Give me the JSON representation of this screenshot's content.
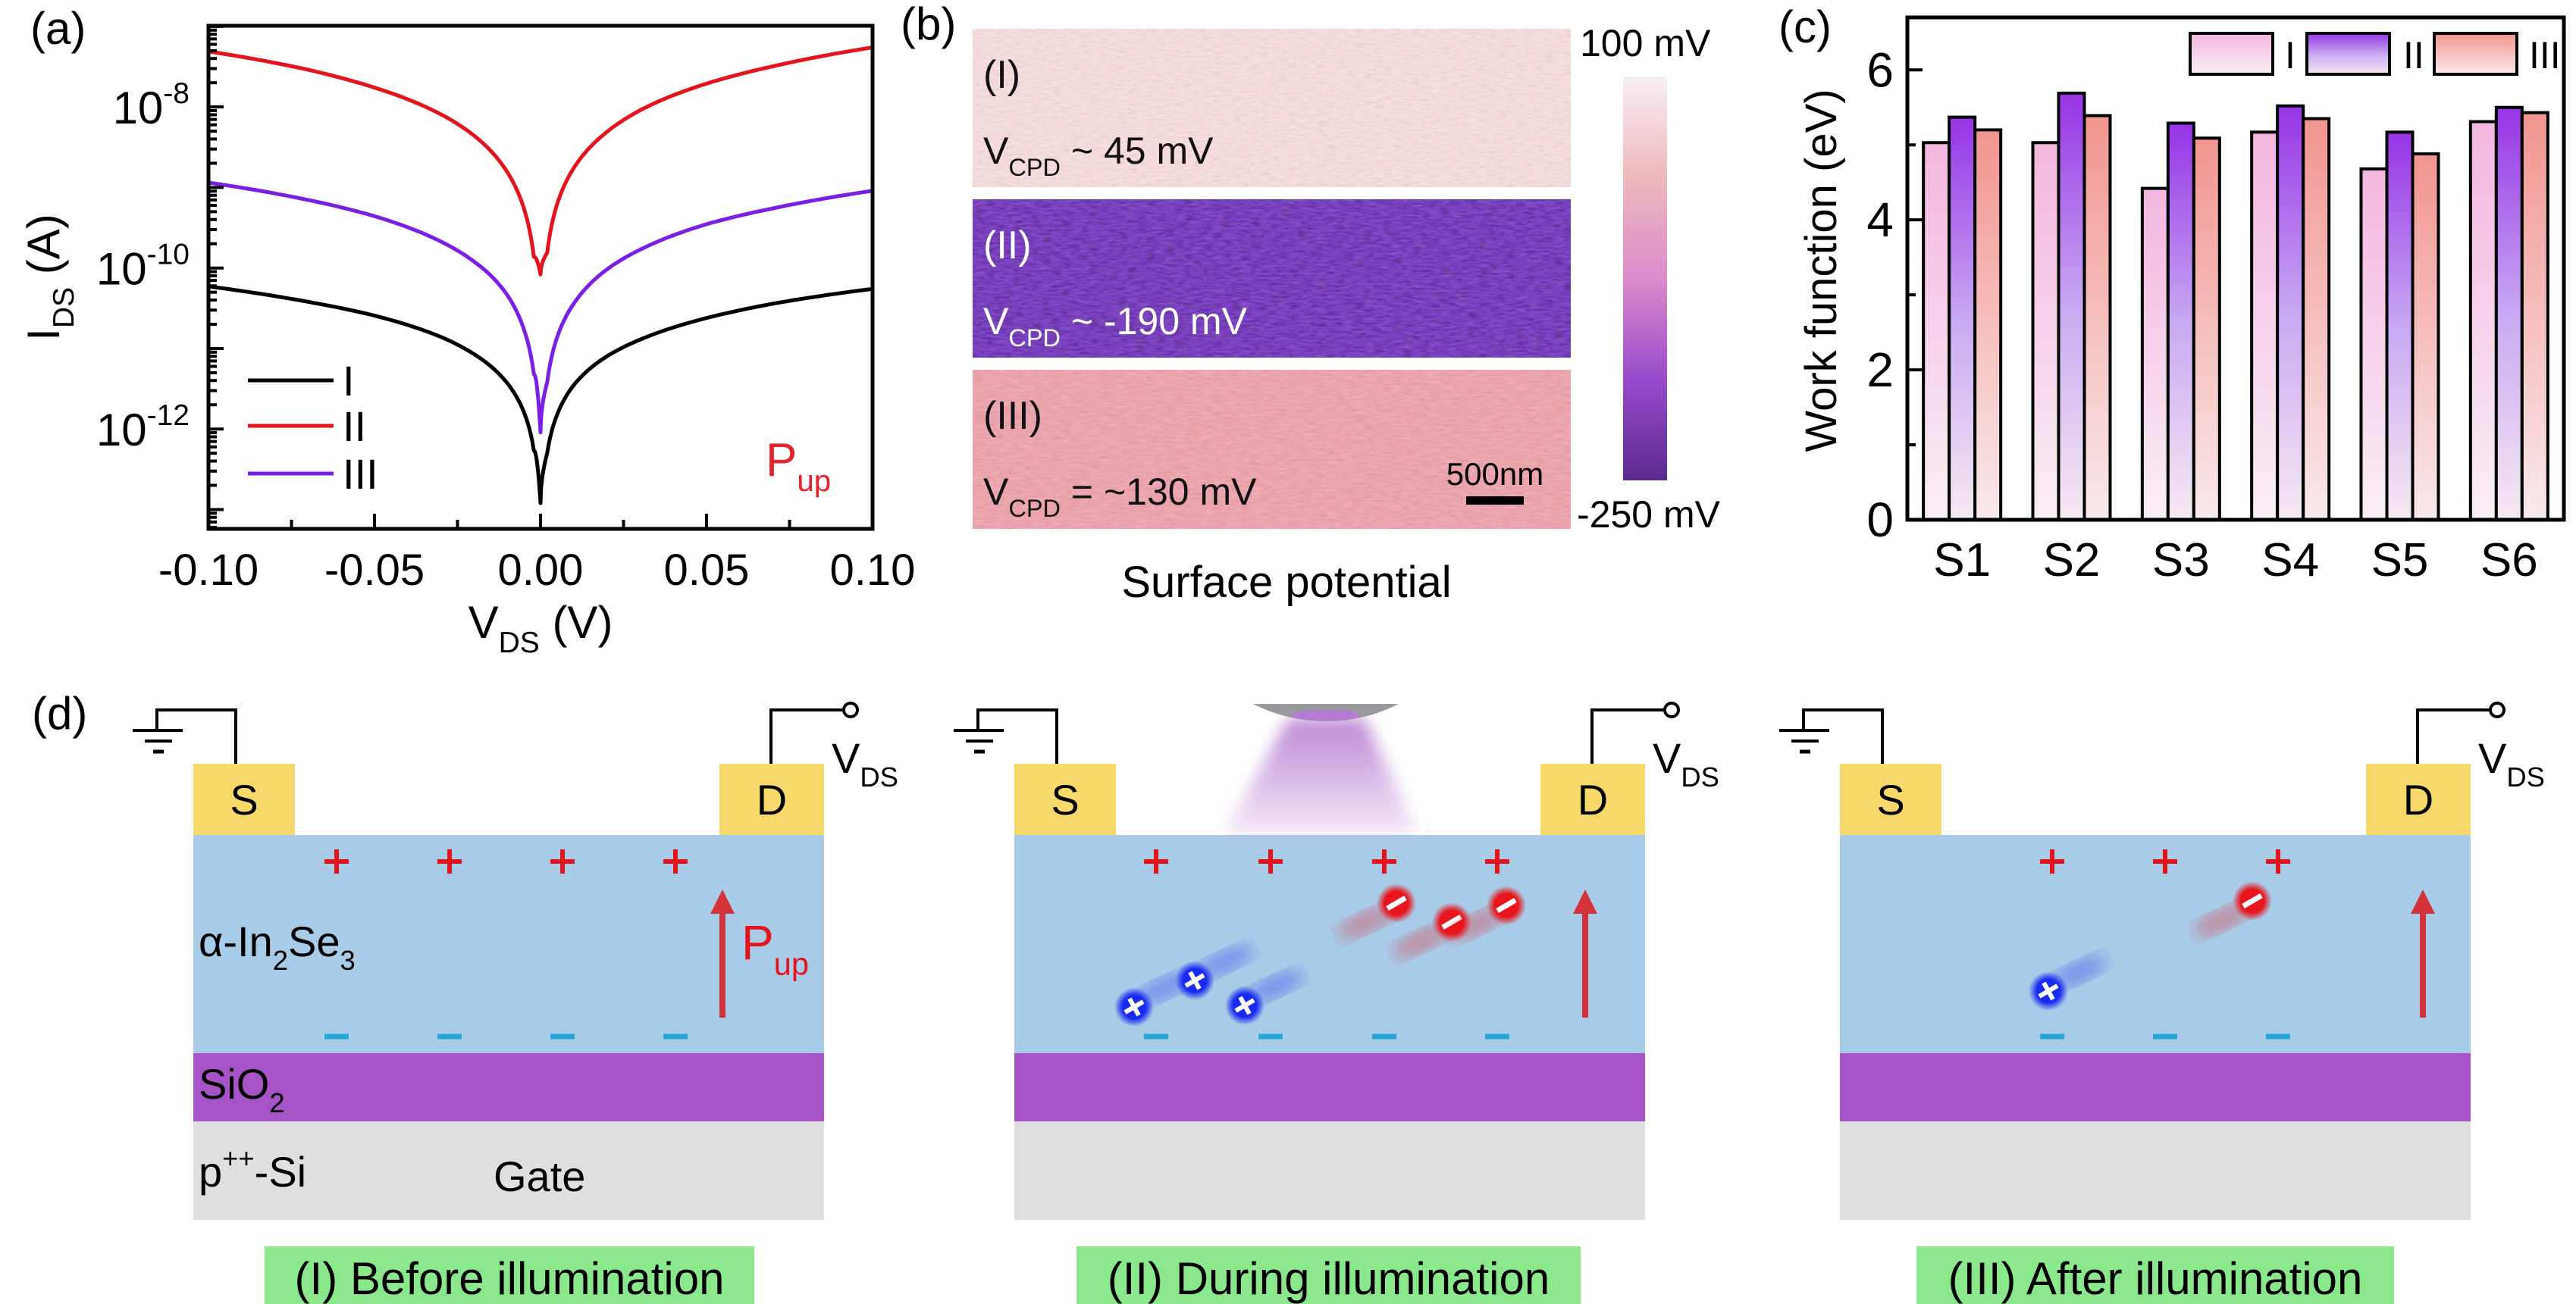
{
  "panel_labels": {
    "a": "(a)",
    "b": "(b)",
    "c": "(c)",
    "d": "(d)"
  },
  "chart_data": [
    {
      "panel": "a",
      "type": "line",
      "x_scale": "linear",
      "y_scale": "log",
      "xlim": [
        -0.1,
        0.1
      ],
      "ylim": [
        5.75e-14,
        1.02e-07
      ],
      "grid": false,
      "xticks": [
        -0.1,
        -0.05,
        0,
        0.05,
        0.1
      ],
      "xtick_labels": [
        "-0.10",
        "-0.05",
        "0.00",
        "0.05",
        "0.10"
      ],
      "yticks": [
        1e-08,
        1e-10,
        1e-12
      ],
      "ytick_labels": [
        {
          "base": "10",
          "exp": "-8"
        },
        {
          "base": "10",
          "exp": "-10"
        },
        {
          "base": "10",
          "exp": "-12"
        }
      ],
      "xlabel": {
        "base": "V",
        "sub": "DS",
        "unit": " (V)"
      },
      "ylabel": {
        "base": "I",
        "sub": "DS",
        "unit": " (A)"
      },
      "legend_placement": "bottom-left",
      "annotation": {
        "base": "P",
        "sub": "up",
        "color": "#e3242b"
      },
      "x": [
        -0.1,
        -0.07,
        -0.05,
        -0.03,
        -0.02,
        -0.01,
        -0.005,
        -0.002,
        0,
        0.002,
        0.005,
        0.01,
        0.02,
        0.03,
        0.05,
        0.07,
        0.1
      ],
      "series": [
        {
          "name": "I",
          "color": "#000000",
          "values": [
            5.9e-11,
            3.8e-11,
            2.56e-11,
            1.39e-11,
            8.5e-12,
            3.7e-12,
            1.62e-12,
            5.4e-13,
            1.2e-13,
            5e-13,
            1.51e-12,
            3.5e-12,
            8e-12,
            1.29e-11,
            2.39e-11,
            3.6e-11,
            5.5e-11
          ]
        },
        {
          "name": "II",
          "color": "#e3141c",
          "values": [
            4.9e-08,
            2.9e-08,
            1.74e-08,
            8.1e-09,
            4.4e-09,
            1.55e-09,
            5.5e-10,
            1.38e-10,
            8.3e-11,
            1.55e-10,
            6.2e-10,
            1.74e-09,
            4.9e-09,
            9.1e-09,
            1.95e-08,
            3.2e-08,
            5.5e-08
          ]
        },
        {
          "name": "III",
          "color": "#7a1fe6",
          "values": [
            1.15e-09,
            7e-10,
            4.4e-10,
            2.13e-10,
            1.2e-10,
            4.6e-11,
            1.73e-11,
            4.8e-12,
            9.1e-13,
            3.8e-12,
            1.38e-11,
            3.6e-11,
            9.6e-11,
            1.69e-10,
            3.5e-10,
            5.5e-10,
            9.1e-10
          ]
        }
      ]
    },
    {
      "panel": "c",
      "type": "bar",
      "categories": [
        "S1",
        "S2",
        "S3",
        "S4",
        "S5",
        "S6"
      ],
      "ylim": [
        0,
        6.7
      ],
      "yticks": [
        0,
        2,
        4,
        6
      ],
      "ytick_labels": [
        "0",
        "2",
        "4",
        "6"
      ],
      "ylabel": "Work function (eV)",
      "xlabel": "",
      "grid": false,
      "legend_placement": "top-right",
      "series": [
        {
          "name": "I",
          "gradient": [
            "#f4b6df",
            "#f8eef4"
          ],
          "values": [
            5.03,
            5.03,
            4.42,
            5.17,
            4.68,
            5.31
          ]
        },
        {
          "name": "II",
          "gradient": [
            "#9634e6",
            "#c8a8f2",
            "#f6e9f1"
          ],
          "values": [
            5.37,
            5.69,
            5.29,
            5.52,
            5.17,
            5.5
          ]
        },
        {
          "name": "III",
          "gradient": [
            "#f2958f",
            "#f9e9ec"
          ],
          "values": [
            5.2,
            5.39,
            5.09,
            5.35,
            4.88,
            5.43
          ]
        }
      ]
    }
  ],
  "afm": {
    "rows": [
      {
        "label": "(I)",
        "vcpd": {
          "base": "V",
          "sub": "CPD",
          "rest": " ~ 45 mV"
        },
        "value_mV": 45,
        "color": "#f6dcdc",
        "text_color": "#111111"
      },
      {
        "label": "(II)",
        "vcpd": {
          "base": "V",
          "sub": "CPD",
          "rest": " ~ -190 mV"
        },
        "value_mV": -190,
        "color": "#7b3fc4",
        "text_color": "#ffffff"
      },
      {
        "label": "(III)",
        "vcpd": {
          "base": "V",
          "sub": "CPD",
          "rest": " = ~130 mV"
        },
        "value_mV": 130,
        "color": "#eda3ac",
        "text_color": "#111111"
      }
    ],
    "colorbar": {
      "max_label": "100 mV",
      "min_label": "-250 mV",
      "range_mV": [
        -250,
        100
      ],
      "colors": [
        "#f7eff5",
        "#efb8bc",
        "#da8ccb",
        "#9a4acb",
        "#5a2a8e"
      ]
    },
    "scale_bar": "500nm",
    "caption": "Surface potential"
  },
  "diagram": {
    "layers": {
      "channel": {
        "a": "α-In",
        "s1": "2",
        "b": "Se",
        "s2": "3"
      },
      "oxide": {
        "a": "SiO",
        "s1": "2"
      },
      "substrate": {
        "a": "p",
        "sup": "++",
        "b": "-Si"
      },
      "gate": "Gate"
    },
    "polarization": {
      "base": "P",
      "sub": "up"
    },
    "colors": {
      "channel": "#a8cbe8",
      "oxide": "#a553c7",
      "substrate": "#e0dfdf",
      "contact": "#f7d96b",
      "bound_plus": "#e3141c",
      "bound_minus": "#27a6d6",
      "arrow": "#d3333b",
      "caption_bg": "#8be78b",
      "electron": "#e8161c",
      "hole": "#1a2bf0",
      "light": "#b57ad0"
    },
    "devices": [
      {
        "source": "S",
        "drain": "D",
        "vds": {
          "base": "V",
          "sub": "DS"
        },
        "caption": "(I) Before illumination",
        "bound_charges": 4,
        "electrons": 0,
        "holes": 0,
        "illuminated": false
      },
      {
        "source": "S",
        "drain": "D",
        "vds": {
          "base": "V",
          "sub": "DS"
        },
        "caption": "(II) During illumination",
        "bound_charges": 4,
        "electrons": 3,
        "holes": 3,
        "illuminated": true
      },
      {
        "source": "S",
        "drain": "D",
        "vds": {
          "base": "V",
          "sub": "DS"
        },
        "caption": "(III) After illumination",
        "bound_charges": 3,
        "electrons": 1,
        "holes": 1,
        "illuminated": false
      }
    ]
  }
}
